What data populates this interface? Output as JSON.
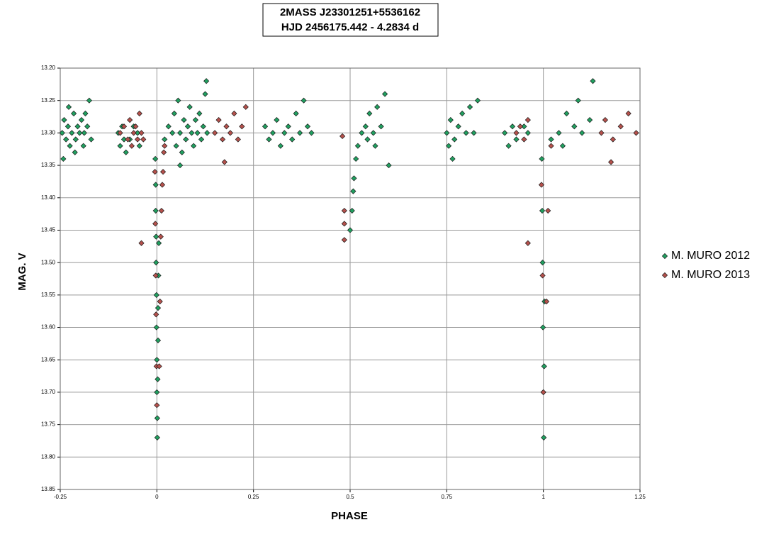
{
  "chart_data": {
    "type": "scatter",
    "title": "2MASS J23301251+5536162",
    "subtitle": "HJD 2456175.442  - 4.2834 d",
    "x_label": "PHASE",
    "y_label": "MAG. V",
    "xlim": [
      -0.25,
      1.25
    ],
    "xticks": [
      -0.25,
      0,
      0.25,
      0.5,
      0.75,
      1,
      1.25
    ],
    "ylim": [
      13.85,
      13.2
    ],
    "yticks": [
      {
        "value": 13.2,
        "label": "13.20"
      },
      {
        "value": 13.25,
        "label": "13.25"
      },
      {
        "value": 13.3,
        "label": "13.30"
      },
      {
        "value": 13.35,
        "label": "13.35"
      },
      {
        "value": 13.4,
        "label": "13.40"
      },
      {
        "value": 13.45,
        "label": "13.45"
      },
      {
        "value": 13.5,
        "label": "13.50"
      },
      {
        "value": 13.55,
        "label": "13.55"
      },
      {
        "value": 13.6,
        "label": "13.60"
      },
      {
        "value": 13.65,
        "label": "13.65"
      },
      {
        "value": 13.7,
        "label": "13.70"
      },
      {
        "value": 13.75,
        "label": "13.75"
      },
      {
        "value": 13.8,
        "label": "13.80"
      },
      {
        "value": 13.85,
        "label": "13.85"
      }
    ],
    "grid": true,
    "legend": "right",
    "series": [
      {
        "name": "M. MURO 2012",
        "color": "#21a060",
        "x": [
          -0.245,
          -0.24,
          -0.235,
          -0.23,
          -0.225,
          -0.22,
          -0.215,
          -0.21,
          -0.205,
          -0.2,
          -0.195,
          -0.19,
          -0.185,
          -0.18,
          -0.175,
          -0.17,
          -0.242,
          -0.228,
          -0.212,
          -0.188,
          -0.1,
          -0.095,
          -0.09,
          -0.085,
          -0.08,
          -0.07,
          -0.06,
          -0.05,
          -0.045,
          -0.004,
          -0.003,
          -0.003,
          -0.002,
          -0.002,
          -0.001,
          -0.001,
          0,
          0,
          0.001,
          0.001,
          0.002,
          0.003,
          0.003,
          0.004,
          0.005,
          0.02,
          0.03,
          0.04,
          0.045,
          0.05,
          0.055,
          0.06,
          0.065,
          0.07,
          0.075,
          0.08,
          0.085,
          0.09,
          0.095,
          0.1,
          0.105,
          0.11,
          0.115,
          0.12,
          0.125,
          0.13,
          0.128,
          0.06,
          0.28,
          0.29,
          0.3,
          0.31,
          0.32,
          0.33,
          0.34,
          0.35,
          0.36,
          0.37,
          0.38,
          0.39,
          0.4,
          0.5,
          0.505,
          0.508,
          0.51,
          0.515,
          0.52,
          0.53,
          0.54,
          0.55,
          0.56,
          0.57,
          0.58,
          0.59,
          0.6,
          0.545,
          0.565,
          0.75,
          0.755,
          0.76,
          0.77,
          0.78,
          0.79,
          0.8,
          0.81,
          0.82,
          0.83,
          0.765,
          0.9,
          0.91,
          0.92,
          0.93,
          0.95,
          0.96,
          0.996,
          0.997,
          0.998,
          0.999,
          1,
          1.001,
          1.002,
          1.003,
          1.02,
          1.04,
          1.05,
          1.06,
          1.08,
          1.1,
          1.12,
          1.128,
          1.09
        ],
        "values": [
          13.3,
          13.28,
          13.31,
          13.29,
          13.32,
          13.3,
          13.27,
          13.31,
          13.29,
          13.3,
          13.28,
          13.32,
          13.27,
          13.29,
          13.25,
          13.31,
          13.34,
          13.26,
          13.33,
          13.3,
          13.3,
          13.32,
          13.29,
          13.31,
          13.33,
          13.31,
          13.29,
          13.3,
          13.32,
          13.34,
          13.38,
          13.42,
          13.46,
          13.5,
          13.55,
          13.6,
          13.65,
          13.7,
          13.74,
          13.77,
          13.68,
          13.62,
          13.57,
          13.52,
          13.47,
          13.31,
          13.29,
          13.3,
          13.27,
          13.32,
          13.25,
          13.3,
          13.33,
          13.28,
          13.31,
          13.29,
          13.26,
          13.3,
          13.32,
          13.28,
          13.3,
          13.27,
          13.31,
          13.29,
          13.24,
          13.3,
          13.22,
          13.35,
          13.29,
          13.31,
          13.3,
          13.28,
          13.32,
          13.3,
          13.29,
          13.31,
          13.27,
          13.3,
          13.25,
          13.29,
          13.3,
          13.45,
          13.42,
          13.39,
          13.37,
          13.34,
          13.32,
          13.3,
          13.29,
          13.27,
          13.3,
          13.26,
          13.29,
          13.24,
          13.35,
          13.31,
          13.32,
          13.3,
          13.32,
          13.28,
          13.31,
          13.29,
          13.27,
          13.3,
          13.26,
          13.3,
          13.25,
          13.34,
          13.3,
          13.32,
          13.29,
          13.31,
          13.29,
          13.3,
          13.34,
          13.42,
          13.5,
          13.6,
          13.7,
          13.77,
          13.66,
          13.56,
          13.31,
          13.3,
          13.32,
          13.27,
          13.29,
          13.3,
          13.28,
          13.22,
          13.25
        ]
      },
      {
        "name": "M. MURO 2013",
        "color": "#b5514c",
        "x": [
          -0.095,
          -0.085,
          -0.075,
          -0.07,
          -0.065,
          -0.06,
          -0.055,
          -0.05,
          -0.045,
          -0.04,
          -0.035,
          -0.005,
          -0.004,
          -0.003,
          -0.002,
          -0.001,
          0,
          0.006,
          0.008,
          0.01,
          0.012,
          0.014,
          0.016,
          0.02,
          0.018,
          -0.04,
          0.15,
          0.16,
          0.17,
          0.18,
          0.19,
          0.2,
          0.21,
          0.22,
          0.23,
          0.175,
          0.48,
          0.485,
          0.485,
          0.485,
          0.93,
          0.94,
          0.95,
          0.96,
          0.96,
          0.995,
          0.998,
          1,
          1.008,
          1.012,
          1.02,
          1.15,
          1.16,
          1.18,
          1.2,
          1.22,
          1.24,
          1.175
        ],
        "values": [
          13.3,
          13.29,
          13.31,
          13.28,
          13.32,
          13.3,
          13.29,
          13.31,
          13.27,
          13.3,
          13.31,
          13.36,
          13.44,
          13.52,
          13.58,
          13.66,
          13.72,
          13.66,
          13.56,
          13.46,
          13.42,
          13.38,
          13.36,
          13.32,
          13.33,
          13.47,
          13.3,
          13.28,
          13.31,
          13.29,
          13.3,
          13.27,
          13.31,
          13.29,
          13.26,
          13.345,
          13.305,
          13.42,
          13.44,
          13.465,
          13.3,
          13.29,
          13.31,
          13.28,
          13.47,
          13.38,
          13.52,
          13.7,
          13.56,
          13.42,
          13.32,
          13.3,
          13.28,
          13.31,
          13.29,
          13.27,
          13.3,
          13.345
        ]
      }
    ]
  }
}
